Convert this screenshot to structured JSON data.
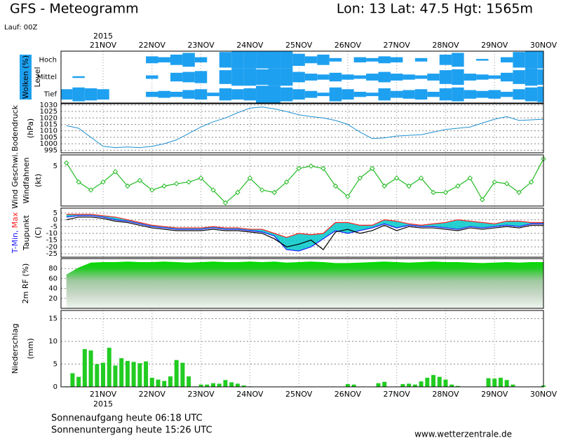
{
  "header": {
    "title": "GFS - Meteogramm",
    "location": "Lon: 13 Lat: 47.5 Hgt: 1565m",
    "run": "Lauf: 00Z"
  },
  "time": {
    "year": "2015",
    "xlim": [
      -0.86,
      9
    ],
    "xticks": [
      {
        "value": 0,
        "label": "21NOV"
      },
      {
        "value": 1,
        "label": "22NOV"
      },
      {
        "value": 2,
        "label": "23NOV"
      },
      {
        "value": 3,
        "label": "24NOV"
      },
      {
        "value": 4,
        "label": "25NOV"
      },
      {
        "value": 5,
        "label": "26NOV"
      },
      {
        "value": 6,
        "label": "27NOV"
      },
      {
        "value": 7,
        "label": "28NOV"
      },
      {
        "value": 8,
        "label": "29NOV"
      },
      {
        "value": 9,
        "label": "30NOV"
      }
    ],
    "x": [
      -0.75,
      -0.5,
      -0.25,
      0,
      0.25,
      0.5,
      0.75,
      1,
      1.25,
      1.5,
      1.75,
      2,
      2.25,
      2.5,
      2.75,
      3,
      3.25,
      3.5,
      3.75,
      4,
      4.25,
      4.5,
      4.75,
      5,
      5.25,
      5.5,
      5.75,
      6,
      6.25,
      6.5,
      6.75,
      7,
      7.25,
      7.5,
      7.75,
      8,
      8.25,
      8.5,
      8.75,
      9
    ],
    "x_precip": [
      -0.75,
      -0.625,
      -0.5,
      -0.375,
      -0.25,
      -0.125,
      0,
      0.125,
      0.25,
      0.375,
      0.5,
      0.625,
      0.75,
      0.875,
      1,
      1.125,
      1.25,
      1.375,
      1.5,
      1.625,
      1.75,
      1.875,
      2,
      2.125,
      2.25,
      2.375,
      2.5,
      2.625,
      2.75,
      2.875,
      3,
      3.125,
      3.25,
      3.375,
      3.5,
      3.625,
      3.75,
      3.875,
      4,
      4.125,
      4.25,
      4.375,
      4.5,
      4.625,
      4.75,
      4.875,
      5,
      5.125,
      5.25,
      5.375,
      5.5,
      5.625,
      5.75,
      5.875,
      6,
      6.125,
      6.25,
      6.375,
      6.5,
      6.625,
      6.75,
      6.875,
      7,
      7.125,
      7.25,
      7.375,
      7.5,
      7.625,
      7.75,
      7.875,
      8,
      8.125,
      8.25,
      8.375,
      8.5,
      8.625,
      8.75,
      8.875,
      9
    ]
  },
  "chart_data": [
    {
      "type": "cloud",
      "label": "Wolken (%)",
      "level_label": "Level",
      "color": "#1ea0f0",
      "series": [
        {
          "name": "Hoch",
          "values": [
            0,
            0,
            0,
            0,
            0,
            0,
            0,
            40,
            30,
            60,
            80,
            30,
            0,
            90,
            100,
            100,
            100,
            100,
            100,
            70,
            40,
            60,
            20,
            0,
            30,
            20,
            40,
            30,
            0,
            20,
            0,
            60,
            80,
            0,
            10,
            0,
            30,
            90,
            100,
            100
          ]
        },
        {
          "name": "Mittel",
          "values": [
            0,
            10,
            0,
            0,
            0,
            0,
            0,
            20,
            0,
            50,
            60,
            70,
            0,
            80,
            100,
            100,
            90,
            100,
            100,
            60,
            40,
            30,
            50,
            30,
            20,
            40,
            60,
            40,
            30,
            20,
            40,
            80,
            90,
            40,
            30,
            20,
            50,
            80,
            100,
            90
          ]
        },
        {
          "name": "Tief",
          "values": [
            60,
            80,
            70,
            60,
            0,
            0,
            0,
            30,
            40,
            30,
            50,
            60,
            20,
            70,
            60,
            70,
            100,
            100,
            80,
            60,
            40,
            20,
            80,
            60,
            30,
            20,
            70,
            40,
            50,
            60,
            30,
            70,
            80,
            50,
            40,
            50,
            30,
            60,
            80,
            90
          ]
        }
      ]
    },
    {
      "type": "line",
      "label": "Bodendruck",
      "unit": "(hPa)",
      "color": "#1e90d0",
      "ylim": [
        993,
        1031
      ],
      "yticks": [
        995,
        1000,
        1005,
        1010,
        1015,
        1020,
        1025,
        1030
      ],
      "values": [
        1014,
        1012,
        1005,
        998,
        997,
        997.5,
        997,
        998,
        1000,
        1003,
        1008,
        1013,
        1017,
        1020,
        1024,
        1027.5,
        1028.5,
        1027,
        1025,
        1022.5,
        1021,
        1020,
        1018,
        1015,
        1009,
        1004,
        1004.5,
        1006,
        1006.5,
        1007,
        1009,
        1011,
        1012,
        1013,
        1016,
        1019,
        1021,
        1018,
        1018.5,
        1019
      ]
    },
    {
      "type": "wind",
      "label": "Wind Geschwi.",
      "label2": "Windfahnen",
      "unit": "(kt)",
      "color": "#22bb22",
      "ylim": [
        0,
        6.4
      ],
      "yticks": [
        5
      ],
      "values": [
        5.4,
        3,
        2,
        3,
        4.3,
        2.5,
        3.2,
        2,
        2.5,
        2.8,
        3,
        3.5,
        2,
        0.4,
        1.7,
        3.5,
        2,
        1.7,
        3,
        4.7,
        5,
        4.7,
        2.5,
        1.2,
        3.5,
        4.7,
        2.5,
        3.5,
        2.5,
        3.5,
        1.7,
        1.7,
        2.5,
        3.5,
        0.8,
        3,
        2.8,
        1.7,
        3,
        5.9
      ]
    },
    {
      "type": "band",
      "label_parts": [
        "T-Min,",
        "Max"
      ],
      "label2": "Taupunkt",
      "unit": "(C)",
      "fill": "#00c8c8",
      "ylim": [
        -27.6,
        8.6
      ],
      "yticks": [
        5,
        0,
        -5,
        -10,
        -15,
        -20,
        -25
      ],
      "series": [
        {
          "color": "#2020ff",
          "values": [
            2,
            3,
            3,
            2,
            0,
            -1,
            -3,
            -5,
            -6,
            -7,
            -7,
            -7,
            -6,
            -7,
            -7,
            -8,
            -9,
            -12,
            -22,
            -23,
            -20,
            -14,
            -8,
            -10,
            -8,
            -6,
            -3,
            -6,
            -4,
            -5,
            -5,
            -6,
            -7,
            -5,
            -6,
            -5,
            -4,
            -5,
            -3,
            -3
          ]
        },
        {
          "color": "#ff2020",
          "values": [
            4,
            4,
            4,
            3,
            2,
            0,
            -2,
            -4,
            -5,
            -6,
            -6,
            -6,
            -5,
            -6,
            -6,
            -7,
            -7,
            -10,
            -13,
            -10,
            -11,
            -10,
            -2,
            -2,
            -4,
            -4,
            0,
            -1,
            -3,
            -4,
            -3,
            -2,
            0,
            -1,
            -2,
            -3,
            -1,
            -1,
            -2,
            -2
          ]
        },
        {
          "color": "#000000",
          "values": [
            0,
            2,
            2,
            1,
            -1,
            -2,
            -4,
            -6,
            -7,
            -8,
            -8,
            -8,
            -7,
            -8,
            -8,
            -9,
            -10,
            -14,
            -20,
            -18,
            -15,
            -22,
            -9,
            -7,
            -10,
            -8,
            -4,
            -8,
            -5,
            -6,
            -6,
            -7,
            -8,
            -6,
            -7,
            -6,
            -5,
            -6,
            -4,
            -4
          ]
        }
      ]
    },
    {
      "type": "area",
      "label": "2m RF (%)",
      "color": "#00cc00",
      "ylim": [
        0,
        100
      ],
      "yticks": [
        20,
        40,
        60,
        80
      ],
      "values": [
        68,
        82,
        92,
        93,
        93,
        94,
        93,
        93,
        94,
        93,
        92,
        93,
        94,
        93,
        93,
        94,
        93,
        94,
        92,
        93,
        94,
        93,
        91,
        91,
        92,
        93,
        94,
        93,
        92,
        93,
        94,
        93,
        93,
        92,
        91,
        92,
        93,
        92,
        93,
        93
      ]
    },
    {
      "type": "bar",
      "label": "Niederschlag",
      "unit": "(mm)",
      "color": "#22cc22",
      "ylim": [
        0,
        16.8
      ],
      "yticks": [
        0,
        5,
        10,
        15
      ],
      "values": [
        0.1,
        3,
        2.2,
        8.3,
        8,
        5,
        5.3,
        8.6,
        4.7,
        6.3,
        5.7,
        5.5,
        5.2,
        5.6,
        2,
        1.6,
        1.3,
        2.3,
        5.9,
        5.3,
        2.3,
        0.1,
        0.5,
        0.5,
        0.8,
        0.7,
        1.5,
        1,
        0.7,
        0.3,
        0.1,
        0,
        0,
        0,
        0,
        0,
        0,
        0,
        0,
        0,
        0,
        0,
        0,
        0,
        0,
        0,
        0.6,
        0.5,
        0,
        0,
        0,
        0.8,
        1.1,
        0,
        0,
        0.6,
        0.7,
        0.5,
        1.2,
        2,
        2.6,
        2.2,
        1.6,
        0.5,
        0.2,
        0,
        0,
        0,
        0,
        1.9,
        1.8,
        2,
        1.5,
        0.5,
        0,
        0,
        0,
        0,
        0.3
      ]
    }
  ],
  "footer": {
    "sunrise": "Sonnenaufgang heute 06:18 UTC",
    "sunset": "Sonnenuntergang heute 15:26 UTC",
    "source": "www.wetterzentrale.de"
  }
}
